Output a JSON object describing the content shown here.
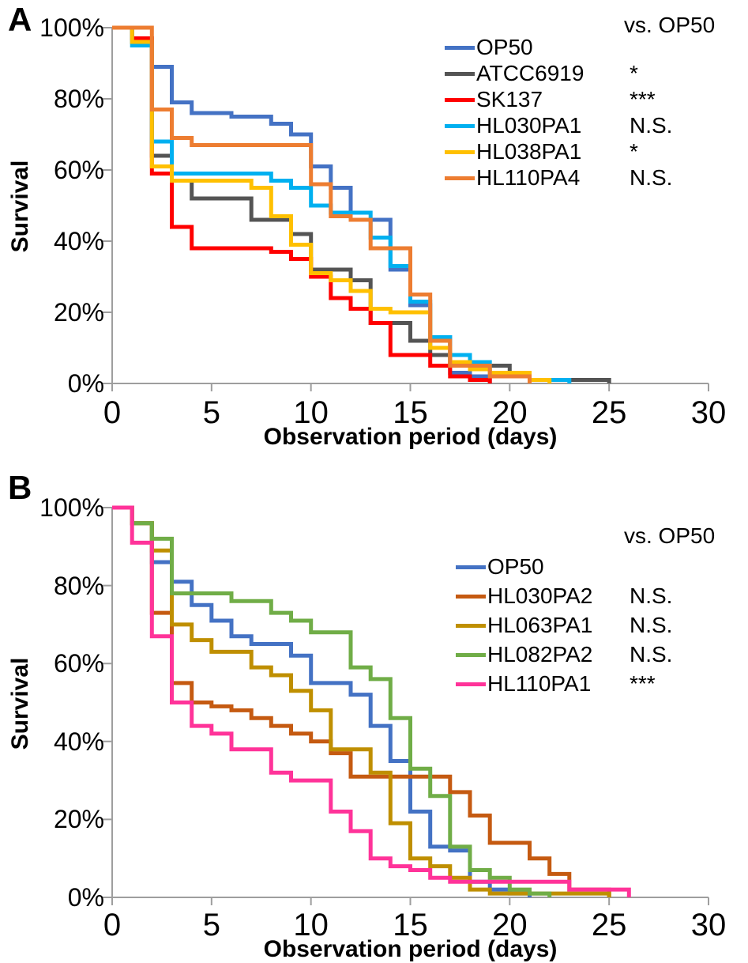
{
  "chart_data": [
    {
      "type": "line",
      "chart_style": "kaplan-meier-step-survival",
      "panel_label": "A",
      "title": "",
      "xlabel": "Observation period (days)",
      "ylabel": "Survival",
      "legend_header": "vs. OP50",
      "legend_position": "inside-top-right",
      "grid": false,
      "xlim": [
        0,
        30
      ],
      "ylim_percent": [
        0,
        100
      ],
      "x_tick_labels": [
        "0",
        "5",
        "10",
        "15",
        "20",
        "25",
        "30"
      ],
      "y_tick_labels": [
        "100%",
        "80%",
        "60%",
        "40%",
        "20%",
        "0%"
      ],
      "axis_color": "#9e9e9e",
      "series": [
        {
          "name": "OP50",
          "color": "#4472C4",
          "sig_vs_op50": "",
          "steps": [
            [
              0,
              100
            ],
            [
              1,
              96
            ],
            [
              2,
              89
            ],
            [
              3,
              79
            ],
            [
              4,
              76
            ],
            [
              6,
              75
            ],
            [
              8,
              73
            ],
            [
              9,
              70
            ],
            [
              10,
              61
            ],
            [
              11,
              55
            ],
            [
              12,
              46
            ],
            [
              14,
              32
            ],
            [
              15,
              22
            ],
            [
              16,
              13
            ],
            [
              17,
              3
            ],
            [
              18,
              2
            ],
            [
              19,
              0
            ]
          ]
        },
        {
          "name": "ATCC6919",
          "color": "#545454",
          "sig_vs_op50": "*",
          "steps": [
            [
              0,
              100
            ],
            [
              1,
              97
            ],
            [
              2,
              64
            ],
            [
              3,
              57
            ],
            [
              4,
              52
            ],
            [
              7,
              46
            ],
            [
              9,
              42
            ],
            [
              10,
              32
            ],
            [
              12,
              29
            ],
            [
              13,
              17
            ],
            [
              15,
              12
            ],
            [
              16,
              8
            ],
            [
              17,
              5
            ],
            [
              20,
              2
            ],
            [
              21,
              1
            ],
            [
              25,
              0
            ]
          ]
        },
        {
          "name": "SK137",
          "color": "#FF0000",
          "sig_vs_op50": "***",
          "steps": [
            [
              0,
              100
            ],
            [
              1,
              97
            ],
            [
              2,
              59
            ],
            [
              3,
              44
            ],
            [
              4,
              38
            ],
            [
              8,
              37
            ],
            [
              9,
              35
            ],
            [
              10,
              30
            ],
            [
              11,
              24
            ],
            [
              12,
              21
            ],
            [
              13,
              17
            ],
            [
              14,
              8
            ],
            [
              16,
              5
            ],
            [
              17,
              2
            ],
            [
              18,
              1
            ],
            [
              19,
              0
            ]
          ]
        },
        {
          "name": "HL030PA1",
          "color": "#00B0F0",
          "sig_vs_op50": "N.S.",
          "steps": [
            [
              0,
              100
            ],
            [
              1,
              95
            ],
            [
              2,
              68
            ],
            [
              3,
              59
            ],
            [
              8,
              57
            ],
            [
              9,
              55
            ],
            [
              10,
              50
            ],
            [
              11,
              48
            ],
            [
              13,
              41
            ],
            [
              14,
              33
            ],
            [
              15,
              23
            ],
            [
              16,
              13
            ],
            [
              17,
              8
            ],
            [
              18,
              6
            ],
            [
              19,
              3
            ],
            [
              21,
              1
            ],
            [
              23,
              0
            ]
          ]
        },
        {
          "name": "HL038PA1",
          "color": "#FFC000",
          "sig_vs_op50": "*",
          "steps": [
            [
              0,
              100
            ],
            [
              1,
              96
            ],
            [
              2,
              61
            ],
            [
              3,
              57
            ],
            [
              7,
              55
            ],
            [
              8,
              47
            ],
            [
              9,
              39
            ],
            [
              10,
              31
            ],
            [
              11,
              29
            ],
            [
              12,
              26
            ],
            [
              13,
              21
            ],
            [
              14,
              20
            ],
            [
              16,
              10
            ],
            [
              17,
              6
            ],
            [
              18,
              4
            ],
            [
              19,
              3
            ],
            [
              21,
              1
            ],
            [
              22,
              0
            ]
          ]
        },
        {
          "name": "HL110PA4",
          "color": "#ED7D31",
          "sig_vs_op50": "N.S.",
          "steps": [
            [
              0,
              100
            ],
            [
              2,
              77
            ],
            [
              3,
              69
            ],
            [
              4,
              67
            ],
            [
              10,
              56
            ],
            [
              11,
              47
            ],
            [
              12,
              46
            ],
            [
              13,
              38
            ],
            [
              15,
              25
            ],
            [
              16,
              12
            ],
            [
              17,
              5
            ],
            [
              19,
              2
            ],
            [
              21,
              0
            ]
          ]
        }
      ]
    },
    {
      "type": "line",
      "chart_style": "kaplan-meier-step-survival",
      "panel_label": "B",
      "title": "",
      "xlabel": "Observation period (days)",
      "ylabel": "Survival",
      "legend_header": "vs. OP50",
      "legend_position": "inside-top-right",
      "grid": false,
      "xlim": [
        0,
        30
      ],
      "ylim_percent": [
        0,
        100
      ],
      "x_tick_labels": [
        "0",
        "5",
        "10",
        "15",
        "20",
        "25",
        "30"
      ],
      "y_tick_labels": [
        "100%",
        "80%",
        "60%",
        "40%",
        "20%",
        "0%"
      ],
      "axis_color": "#9e9e9e",
      "series": [
        {
          "name": "OP50",
          "color": "#4472C4",
          "sig_vs_op50": "",
          "steps": [
            [
              0,
              100
            ],
            [
              1,
              96
            ],
            [
              2,
              86
            ],
            [
              3,
              81
            ],
            [
              4,
              75
            ],
            [
              5,
              71
            ],
            [
              6,
              67
            ],
            [
              7,
              65
            ],
            [
              9,
              62
            ],
            [
              10,
              55
            ],
            [
              12,
              52
            ],
            [
              13,
              44
            ],
            [
              14,
              35
            ],
            [
              15,
              22
            ],
            [
              16,
              13
            ],
            [
              17,
              12
            ],
            [
              18,
              4
            ],
            [
              19,
              2
            ],
            [
              20,
              1
            ],
            [
              21,
              0
            ]
          ]
        },
        {
          "name": "HL030PA2",
          "color": "#C55A11",
          "sig_vs_op50": "N.S.",
          "steps": [
            [
              0,
              100
            ],
            [
              1,
              96
            ],
            [
              2,
              73
            ],
            [
              3,
              55
            ],
            [
              4,
              50
            ],
            [
              5,
              49
            ],
            [
              6,
              48
            ],
            [
              7,
              46
            ],
            [
              8,
              44
            ],
            [
              9,
              42
            ],
            [
              10,
              40
            ],
            [
              11,
              37
            ],
            [
              12,
              31
            ],
            [
              17,
              27
            ],
            [
              18,
              21
            ],
            [
              19,
              14
            ],
            [
              21,
              10
            ],
            [
              22,
              6
            ],
            [
              23,
              2
            ],
            [
              25,
              0
            ]
          ]
        },
        {
          "name": "HL063PA1",
          "color": "#BF8F00",
          "sig_vs_op50": "N.S.",
          "steps": [
            [
              0,
              100
            ],
            [
              1,
              96
            ],
            [
              2,
              89
            ],
            [
              3,
              70
            ],
            [
              4,
              66
            ],
            [
              5,
              63
            ],
            [
              7,
              59
            ],
            [
              8,
              57
            ],
            [
              9,
              53
            ],
            [
              10,
              48
            ],
            [
              11,
              38
            ],
            [
              13,
              32
            ],
            [
              14,
              19
            ],
            [
              15,
              10
            ],
            [
              16,
              8
            ],
            [
              17,
              5
            ],
            [
              18,
              2
            ],
            [
              19,
              1
            ],
            [
              25,
              0
            ]
          ]
        },
        {
          "name": "HL082PA2",
          "color": "#70AD47",
          "sig_vs_op50": "N.S.",
          "steps": [
            [
              0,
              100
            ],
            [
              1,
              96
            ],
            [
              2,
              92
            ],
            [
              3,
              78
            ],
            [
              6,
              76
            ],
            [
              8,
              73
            ],
            [
              9,
              71
            ],
            [
              10,
              68
            ],
            [
              12,
              59
            ],
            [
              13,
              56
            ],
            [
              14,
              46
            ],
            [
              15,
              33
            ],
            [
              16,
              26
            ],
            [
              17,
              13
            ],
            [
              18,
              7
            ],
            [
              19,
              5
            ],
            [
              20,
              2
            ],
            [
              21,
              1
            ],
            [
              22,
              0
            ]
          ]
        },
        {
          "name": "HL110PA1",
          "color": "#FF3399",
          "sig_vs_op50": "***",
          "steps": [
            [
              0,
              100
            ],
            [
              1,
              91
            ],
            [
              2,
              67
            ],
            [
              3,
              50
            ],
            [
              4,
              44
            ],
            [
              5,
              42
            ],
            [
              6,
              38
            ],
            [
              8,
              32
            ],
            [
              9,
              30
            ],
            [
              11,
              22
            ],
            [
              12,
              17
            ],
            [
              13,
              10
            ],
            [
              14,
              8
            ],
            [
              15,
              7
            ],
            [
              16,
              5
            ],
            [
              17,
              4
            ],
            [
              23,
              2
            ],
            [
              26,
              0
            ]
          ]
        }
      ]
    }
  ]
}
